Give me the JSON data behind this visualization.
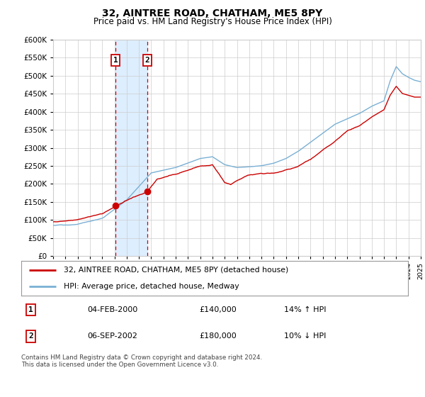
{
  "title": "32, AINTREE ROAD, CHATHAM, ME5 8PY",
  "subtitle": "Price paid vs. HM Land Registry's House Price Index (HPI)",
  "legend_line1": "32, AINTREE ROAD, CHATHAM, ME5 8PY (detached house)",
  "legend_line2": "HPI: Average price, detached house, Medway",
  "sale1_date": "04-FEB-2000",
  "sale1_price": "£140,000",
  "sale1_hpi": "14% ↑ HPI",
  "sale2_date": "06-SEP-2002",
  "sale2_price": "£180,000",
  "sale2_hpi": "10% ↓ HPI",
  "footer": "Contains HM Land Registry data © Crown copyright and database right 2024.\nThis data is licensed under the Open Government Licence v3.0.",
  "hpi_color": "#7ab0d4",
  "price_color": "#cc0000",
  "shade_color": "#ddeeff",
  "dashed_color": "#cc0000",
  "grid_color": "#cccccc",
  "bg_color": "#ffffff",
  "ylim": [
    0,
    600000
  ],
  "yticks": [
    0,
    50000,
    100000,
    150000,
    200000,
    250000,
    300000,
    350000,
    400000,
    450000,
    500000,
    550000,
    600000
  ],
  "sale1_year": 2000.08,
  "sale2_year": 2002.67,
  "xstart": 1995,
  "xend": 2025
}
